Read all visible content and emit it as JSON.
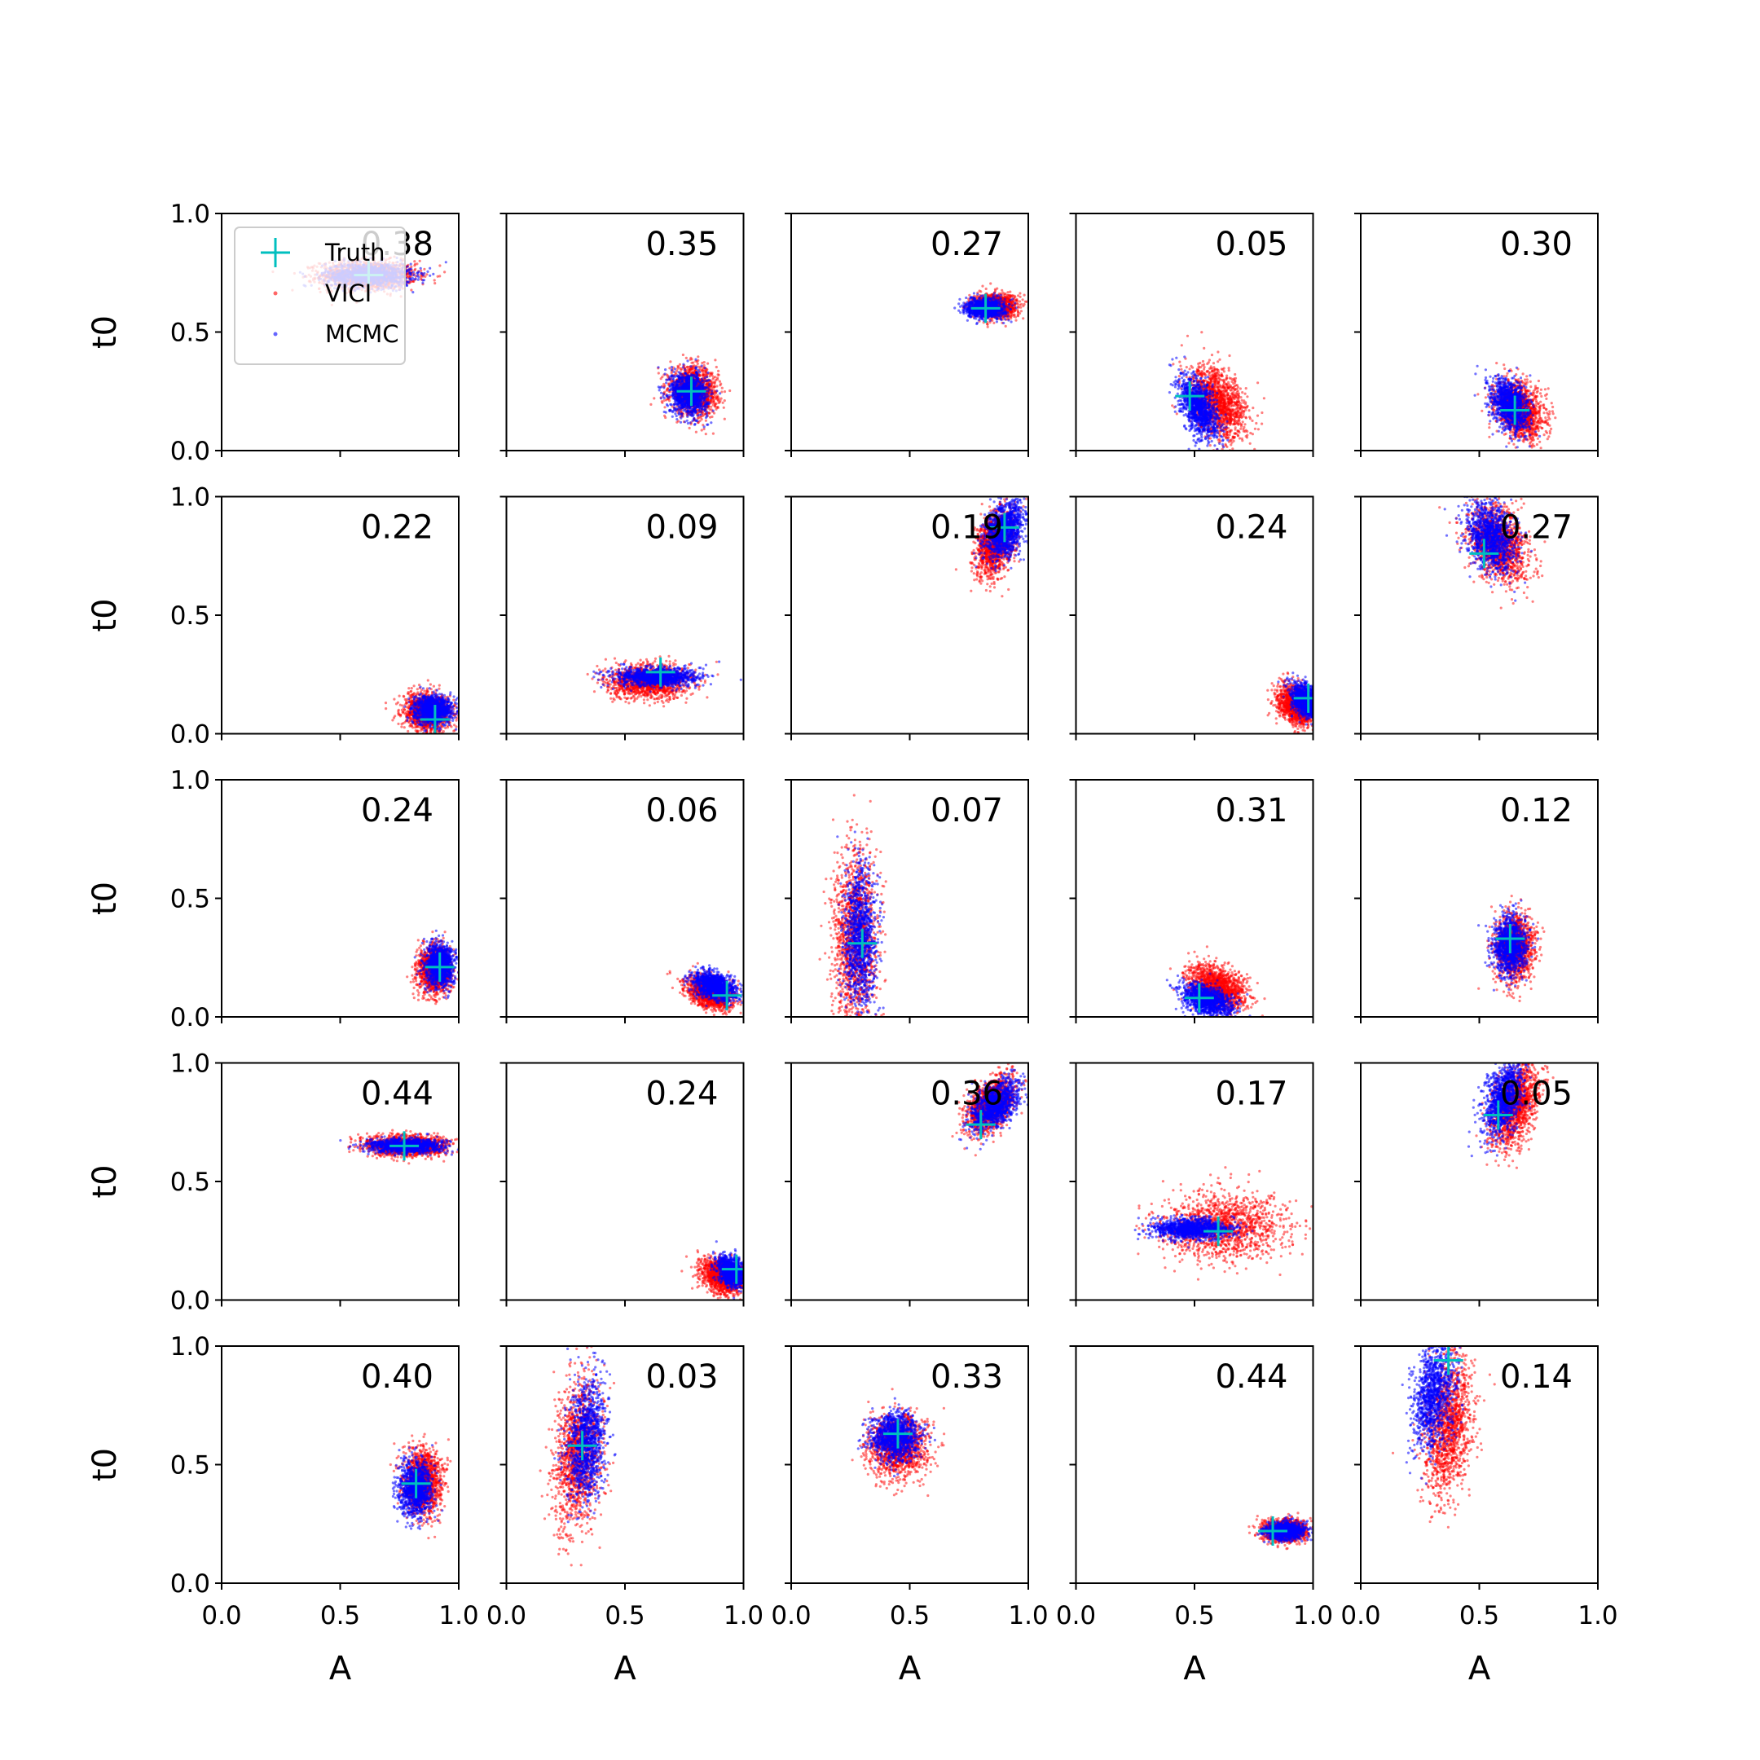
{
  "chart_data": {
    "type": "scatter",
    "grid": {
      "rows": 5,
      "cols": 5
    },
    "xlabel": "A",
    "ylabel": "t0",
    "xlim": [
      0,
      1
    ],
    "ylim": [
      0,
      1
    ],
    "xticks": [
      "0.0",
      "0.5",
      "1.0"
    ],
    "yticks": [
      "0.0",
      "0.5",
      "1.0"
    ],
    "grid_lines": false,
    "legend": {
      "placement": "upper-left of first panel",
      "entries": [
        {
          "label": "Truth",
          "marker": "plus",
          "color": "#00bfbf"
        },
        {
          "label": "VICI",
          "marker": "dot",
          "color": "#ff0000"
        },
        {
          "label": "MCMC",
          "marker": "dot",
          "color": "#0000ff"
        }
      ]
    },
    "colors": {
      "truth": "#00bfbf",
      "vici": "#ff0000",
      "mcmc": "#0000ff"
    },
    "panels": [
      {
        "score": "0.38",
        "truth": [
          0.62,
          0.74
        ],
        "vici": {
          "center": [
            0.62,
            0.74
          ],
          "spread": [
            0.1,
            0.03
          ],
          "corr": 0
        },
        "mcmc": {
          "center": [
            0.62,
            0.74
          ],
          "spread": [
            0.09,
            0.025
          ],
          "corr": 0
        }
      },
      {
        "score": "0.35",
        "truth": [
          0.78,
          0.25
        ],
        "vici": {
          "center": [
            0.79,
            0.25
          ],
          "spread": [
            0.05,
            0.05
          ],
          "corr": -0.1
        },
        "mcmc": {
          "center": [
            0.77,
            0.24
          ],
          "spread": [
            0.04,
            0.045
          ],
          "corr": -0.1
        }
      },
      {
        "score": "0.27",
        "truth": [
          0.82,
          0.6
        ],
        "vici": {
          "center": [
            0.86,
            0.61
          ],
          "spread": [
            0.045,
            0.025
          ],
          "corr": 0
        },
        "mcmc": {
          "center": [
            0.82,
            0.6
          ],
          "spread": [
            0.04,
            0.02
          ],
          "corr": 0
        }
      },
      {
        "score": "0.05",
        "truth": [
          0.48,
          0.23
        ],
        "vici": {
          "center": [
            0.6,
            0.2
          ],
          "spread": [
            0.06,
            0.075
          ],
          "corr": -0.4
        },
        "mcmc": {
          "center": [
            0.52,
            0.18
          ],
          "spread": [
            0.04,
            0.065
          ],
          "corr": -0.5
        }
      },
      {
        "score": "0.30",
        "truth": [
          0.65,
          0.17
        ],
        "vici": {
          "center": [
            0.67,
            0.17
          ],
          "spread": [
            0.05,
            0.06
          ],
          "corr": -0.3
        },
        "mcmc": {
          "center": [
            0.63,
            0.19
          ],
          "spread": [
            0.04,
            0.055
          ],
          "corr": -0.3
        }
      },
      {
        "score": "0.22",
        "truth": [
          0.9,
          0.06
        ],
        "vici": {
          "center": [
            0.87,
            0.09
          ],
          "spread": [
            0.05,
            0.04
          ],
          "corr": 0
        },
        "mcmc": {
          "center": [
            0.89,
            0.1
          ],
          "spread": [
            0.04,
            0.03
          ],
          "corr": 0
        }
      },
      {
        "score": "0.09",
        "truth": [
          0.65,
          0.26
        ],
        "vici": {
          "center": [
            0.6,
            0.22
          ],
          "spread": [
            0.085,
            0.035
          ],
          "corr": 0
        },
        "mcmc": {
          "center": [
            0.63,
            0.24
          ],
          "spread": [
            0.085,
            0.02
          ],
          "corr": 0
        }
      },
      {
        "score": "0.19",
        "truth": [
          0.9,
          0.87
        ],
        "vici": {
          "center": [
            0.86,
            0.8
          ],
          "spread": [
            0.04,
            0.07
          ],
          "corr": 0.3
        },
        "mcmc": {
          "center": [
            0.9,
            0.86
          ],
          "spread": [
            0.04,
            0.06
          ],
          "corr": 0.3
        }
      },
      {
        "score": "0.24",
        "truth": [
          0.98,
          0.15
        ],
        "vici": {
          "center": [
            0.93,
            0.12
          ],
          "spread": [
            0.04,
            0.04
          ],
          "corr": -0.3
        },
        "mcmc": {
          "center": [
            0.97,
            0.14
          ],
          "spread": [
            0.03,
            0.035
          ],
          "corr": -0.3
        }
      },
      {
        "score": "0.27",
        "truth": [
          0.52,
          0.76
        ],
        "vici": {
          "center": [
            0.58,
            0.8
          ],
          "spread": [
            0.06,
            0.08
          ],
          "corr": -0.3
        },
        "mcmc": {
          "center": [
            0.55,
            0.82
          ],
          "spread": [
            0.05,
            0.07
          ],
          "corr": -0.3
        }
      },
      {
        "score": "0.24",
        "truth": [
          0.92,
          0.21
        ],
        "vici": {
          "center": [
            0.9,
            0.2
          ],
          "spread": [
            0.035,
            0.05
          ],
          "corr": 0
        },
        "mcmc": {
          "center": [
            0.92,
            0.22
          ],
          "spread": [
            0.03,
            0.045
          ],
          "corr": 0
        }
      },
      {
        "score": "0.06",
        "truth": [
          0.93,
          0.09
        ],
        "vici": {
          "center": [
            0.86,
            0.1
          ],
          "spread": [
            0.05,
            0.035
          ],
          "corr": -0.4
        },
        "mcmc": {
          "center": [
            0.88,
            0.13
          ],
          "spread": [
            0.045,
            0.03
          ],
          "corr": -0.4
        }
      },
      {
        "score": "0.07",
        "truth": [
          0.3,
          0.31
        ],
        "vici": {
          "center": [
            0.27,
            0.35
          ],
          "spread": [
            0.045,
            0.18
          ],
          "corr": 0
        },
        "mcmc": {
          "center": [
            0.29,
            0.33
          ],
          "spread": [
            0.035,
            0.15
          ],
          "corr": 0
        }
      },
      {
        "score": "0.31",
        "truth": [
          0.52,
          0.08
        ],
        "vici": {
          "center": [
            0.6,
            0.12
          ],
          "spread": [
            0.06,
            0.045
          ],
          "corr": -0.4
        },
        "mcmc": {
          "center": [
            0.55,
            0.07
          ],
          "spread": [
            0.055,
            0.035
          ],
          "corr": -0.4
        }
      },
      {
        "score": "0.12",
        "truth": [
          0.63,
          0.33
        ],
        "vici": {
          "center": [
            0.65,
            0.29
          ],
          "spread": [
            0.04,
            0.07
          ],
          "corr": 0
        },
        "mcmc": {
          "center": [
            0.63,
            0.3
          ],
          "spread": [
            0.035,
            0.06
          ],
          "corr": 0
        }
      },
      {
        "score": "0.44",
        "truth": [
          0.77,
          0.65
        ],
        "vici": {
          "center": [
            0.78,
            0.65
          ],
          "spread": [
            0.085,
            0.022
          ],
          "corr": 0
        },
        "mcmc": {
          "center": [
            0.78,
            0.65
          ],
          "spread": [
            0.075,
            0.015
          ],
          "corr": 0
        }
      },
      {
        "score": "0.24",
        "truth": [
          0.97,
          0.13
        ],
        "vici": {
          "center": [
            0.91,
            0.1
          ],
          "spread": [
            0.045,
            0.035
          ],
          "corr": -0.3
        },
        "mcmc": {
          "center": [
            0.95,
            0.12
          ],
          "spread": [
            0.03,
            0.03
          ],
          "corr": -0.3
        }
      },
      {
        "score": "0.36",
        "truth": [
          0.8,
          0.74
        ],
        "vici": {
          "center": [
            0.84,
            0.82
          ],
          "spread": [
            0.05,
            0.06
          ],
          "corr": 0.5
        },
        "mcmc": {
          "center": [
            0.86,
            0.82
          ],
          "spread": [
            0.05,
            0.05
          ],
          "corr": 0.5
        }
      },
      {
        "score": "0.17",
        "truth": [
          0.6,
          0.29
        ],
        "vici": {
          "center": [
            0.62,
            0.31
          ],
          "spread": [
            0.13,
            0.07
          ],
          "corr": 0
        },
        "mcmc": {
          "center": [
            0.49,
            0.3
          ],
          "spread": [
            0.08,
            0.022
          ],
          "corr": 0
        }
      },
      {
        "score": "0.05",
        "truth": [
          0.58,
          0.78
        ],
        "vici": {
          "center": [
            0.65,
            0.82
          ],
          "spread": [
            0.05,
            0.09
          ],
          "corr": 0.4
        },
        "mcmc": {
          "center": [
            0.6,
            0.85
          ],
          "spread": [
            0.04,
            0.08
          ],
          "corr": 0.4
        }
      },
      {
        "score": "0.40",
        "truth": [
          0.82,
          0.42
        ],
        "vici": {
          "center": [
            0.85,
            0.43
          ],
          "spread": [
            0.04,
            0.07
          ],
          "corr": 0
        },
        "mcmc": {
          "center": [
            0.82,
            0.4
          ],
          "spread": [
            0.035,
            0.06
          ],
          "corr": 0
        }
      },
      {
        "score": "0.03",
        "truth": [
          0.32,
          0.58
        ],
        "vici": {
          "center": [
            0.3,
            0.55
          ],
          "spread": [
            0.05,
            0.16
          ],
          "corr": 0.2
        },
        "mcmc": {
          "center": [
            0.34,
            0.6
          ],
          "spread": [
            0.04,
            0.13
          ],
          "corr": 0.2
        }
      },
      {
        "score": "0.33",
        "truth": [
          0.45,
          0.63
        ],
        "vici": {
          "center": [
            0.45,
            0.58
          ],
          "spread": [
            0.06,
            0.065
          ],
          "corr": 0
        },
        "mcmc": {
          "center": [
            0.44,
            0.62
          ],
          "spread": [
            0.05,
            0.05
          ],
          "corr": 0
        }
      },
      {
        "score": "0.44",
        "truth": [
          0.83,
          0.22
        ],
        "vici": {
          "center": [
            0.88,
            0.22
          ],
          "spread": [
            0.045,
            0.022
          ],
          "corr": 0
        },
        "mcmc": {
          "center": [
            0.88,
            0.22
          ],
          "spread": [
            0.04,
            0.018
          ],
          "corr": 0
        }
      },
      {
        "score": "0.14",
        "truth": [
          0.37,
          0.94
        ],
        "vici": {
          "center": [
            0.37,
            0.66
          ],
          "spread": [
            0.05,
            0.15
          ],
          "corr": 0.3
        },
        "mcmc": {
          "center": [
            0.31,
            0.8
          ],
          "spread": [
            0.045,
            0.12
          ],
          "corr": 0.3
        }
      }
    ]
  }
}
